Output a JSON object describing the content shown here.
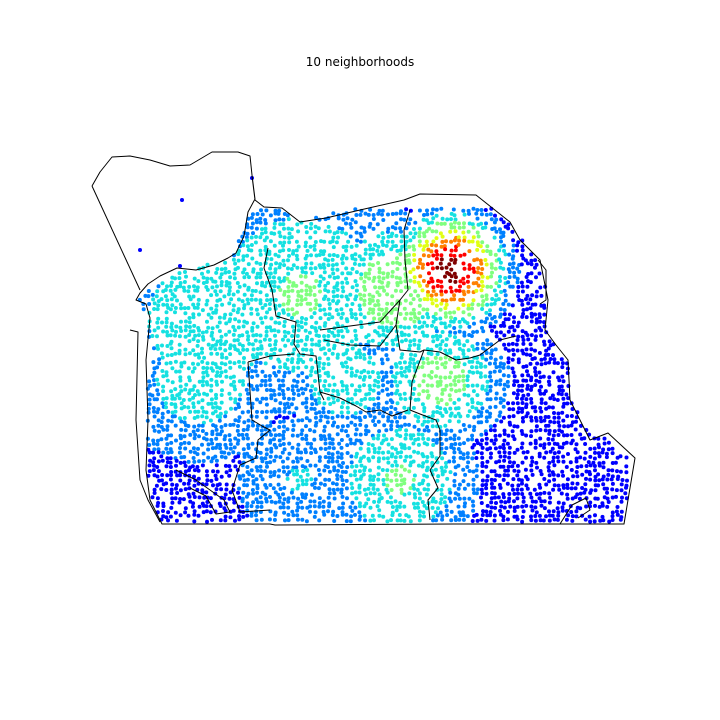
{
  "map": {
    "title": "10 neighborhoods",
    "colormap": [
      "#00007f",
      "#0000ff",
      "#0080ff",
      "#15e1e1",
      "#7fff7f",
      "#e1ff15",
      "#ff8000",
      "#ff0000",
      "#7f0000"
    ],
    "hotspot_color": "#c00000",
    "point_size_note": "scatter of points colored by density (jet colormap)",
    "outline_color": "#000000"
  }
}
